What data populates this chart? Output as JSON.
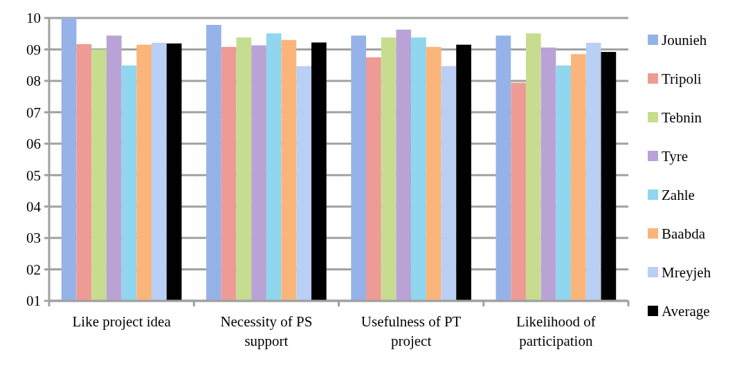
{
  "chart_data": {
    "type": "bar",
    "categories": [
      "Like project idea",
      "Necessity of PS support",
      "Usefulness of PT project",
      "Likelihood of participation"
    ],
    "series": [
      {
        "name": "Jounieh",
        "color": "#95b3e8",
        "values": [
          10.0,
          9.78,
          9.44,
          9.44
        ]
      },
      {
        "name": "Tripoli",
        "color": "#ee9a95",
        "values": [
          9.17,
          9.08,
          8.75,
          7.94
        ]
      },
      {
        "name": "Tebnin",
        "color": "#c6dd8f",
        "values": [
          9.0,
          9.38,
          9.38,
          9.51
        ]
      },
      {
        "name": "Tyre",
        "color": "#b9a3d6",
        "values": [
          9.44,
          9.13,
          9.63,
          9.06
        ]
      },
      {
        "name": "Zahle",
        "color": "#8fd6ee",
        "values": [
          8.49,
          9.51,
          9.38,
          8.49
        ]
      },
      {
        "name": "Baabda",
        "color": "#fbb57a",
        "values": [
          9.15,
          9.3,
          9.08,
          8.85
        ]
      },
      {
        "name": "Mreyjeh",
        "color": "#b9cff3",
        "values": [
          9.21,
          8.47,
          8.47,
          9.21
        ]
      },
      {
        "name": "Average",
        "color": "#000000",
        "values": [
          9.19,
          9.22,
          9.15,
          8.92
        ]
      }
    ],
    "ylim": [
      1,
      10
    ],
    "yticks": [
      {
        "value": 1,
        "label": "01"
      },
      {
        "value": 2,
        "label": "02"
      },
      {
        "value": 3,
        "label": "03"
      },
      {
        "value": 4,
        "label": "04"
      },
      {
        "value": 5,
        "label": "05"
      },
      {
        "value": 6,
        "label": "06"
      },
      {
        "value": 7,
        "label": "07"
      },
      {
        "value": 8,
        "label": "08"
      },
      {
        "value": 9,
        "label": "09"
      },
      10
    ],
    "grid": "y",
    "legend": "right"
  }
}
